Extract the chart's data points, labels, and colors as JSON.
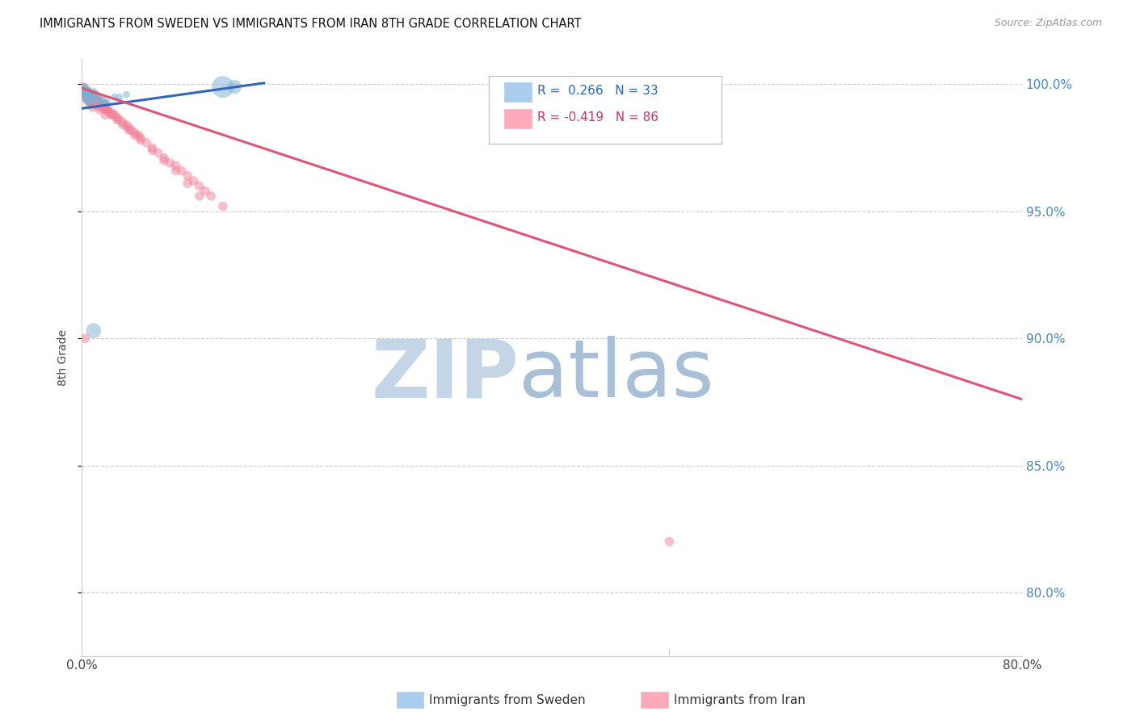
{
  "title": "IMMIGRANTS FROM SWEDEN VS IMMIGRANTS FROM IRAN 8TH GRADE CORRELATION CHART",
  "source": "Source: ZipAtlas.com",
  "ylabel": "8th Grade",
  "ytick_labels": [
    "100.0%",
    "95.0%",
    "90.0%",
    "85.0%",
    "80.0%"
  ],
  "ytick_values": [
    1.0,
    0.95,
    0.9,
    0.85,
    0.8
  ],
  "xlim": [
    0.0,
    0.8
  ],
  "ylim": [
    0.775,
    1.01
  ],
  "legend_r_sweden": "0.266",
  "legend_n_sweden": "33",
  "legend_r_iran": "-0.419",
  "legend_n_iran": "86",
  "sweden_color": "#7bafd4",
  "iran_color": "#f08098",
  "sweden_line_color": "#3366bb",
  "iran_line_color": "#e05575",
  "watermark_zip_color": "#c5d5e8",
  "watermark_atlas_color": "#a8bfd8",
  "sweden_scatter_x": [
    0.001,
    0.002,
    0.002,
    0.003,
    0.003,
    0.003,
    0.004,
    0.004,
    0.005,
    0.005,
    0.005,
    0.006,
    0.006,
    0.007,
    0.007,
    0.008,
    0.008,
    0.009,
    0.01,
    0.01,
    0.012,
    0.013,
    0.015,
    0.016,
    0.018,
    0.02,
    0.022,
    0.028,
    0.032,
    0.038,
    0.12,
    0.13,
    0.01
  ],
  "sweden_scatter_y": [
    0.998,
    0.999,
    0.997,
    0.998,
    0.996,
    0.995,
    0.997,
    0.994,
    0.998,
    0.996,
    0.993,
    0.997,
    0.995,
    0.996,
    0.994,
    0.996,
    0.993,
    0.995,
    0.997,
    0.994,
    0.996,
    0.995,
    0.994,
    0.993,
    0.994,
    0.993,
    0.993,
    0.995,
    0.995,
    0.996,
    0.999,
    0.999,
    0.903
  ],
  "sweden_scatter_size": [
    60,
    55,
    50,
    55,
    48,
    45,
    50,
    44,
    50,
    46,
    42,
    48,
    44,
    46,
    42,
    46,
    40,
    44,
    48,
    42,
    46,
    44,
    42,
    40,
    40,
    38,
    36,
    40,
    40,
    40,
    380,
    160,
    180
  ],
  "iran_scatter_x": [
    0.001,
    0.001,
    0.002,
    0.002,
    0.003,
    0.003,
    0.004,
    0.004,
    0.005,
    0.005,
    0.006,
    0.006,
    0.007,
    0.007,
    0.008,
    0.008,
    0.009,
    0.009,
    0.01,
    0.01,
    0.011,
    0.012,
    0.012,
    0.013,
    0.014,
    0.015,
    0.015,
    0.016,
    0.017,
    0.018,
    0.019,
    0.02,
    0.021,
    0.022,
    0.023,
    0.025,
    0.026,
    0.028,
    0.03,
    0.032,
    0.035,
    0.038,
    0.04,
    0.042,
    0.045,
    0.048,
    0.05,
    0.055,
    0.06,
    0.065,
    0.07,
    0.075,
    0.08,
    0.085,
    0.09,
    0.095,
    0.1,
    0.105,
    0.11,
    0.12,
    0.005,
    0.008,
    0.01,
    0.012,
    0.015,
    0.018,
    0.02,
    0.025,
    0.03,
    0.035,
    0.04,
    0.045,
    0.05,
    0.06,
    0.07,
    0.08,
    0.09,
    0.1,
    0.003,
    0.006,
    0.008,
    0.01,
    0.015,
    0.02,
    0.5,
    0.003
  ],
  "iran_scatter_y": [
    0.999,
    0.997,
    0.998,
    0.996,
    0.997,
    0.995,
    0.997,
    0.994,
    0.997,
    0.995,
    0.996,
    0.994,
    0.996,
    0.993,
    0.995,
    0.992,
    0.995,
    0.991,
    0.996,
    0.993,
    0.994,
    0.995,
    0.992,
    0.993,
    0.993,
    0.994,
    0.991,
    0.992,
    0.992,
    0.991,
    0.992,
    0.991,
    0.99,
    0.99,
    0.989,
    0.989,
    0.988,
    0.988,
    0.987,
    0.986,
    0.985,
    0.984,
    0.983,
    0.982,
    0.981,
    0.98,
    0.979,
    0.977,
    0.975,
    0.973,
    0.971,
    0.969,
    0.968,
    0.966,
    0.964,
    0.962,
    0.96,
    0.958,
    0.956,
    0.952,
    0.997,
    0.996,
    0.995,
    0.994,
    0.993,
    0.992,
    0.99,
    0.988,
    0.986,
    0.984,
    0.982,
    0.98,
    0.978,
    0.974,
    0.97,
    0.966,
    0.961,
    0.956,
    0.996,
    0.994,
    0.993,
    0.992,
    0.99,
    0.988,
    0.82,
    0.9
  ],
  "sweden_line_x": [
    0.0,
    0.155
  ],
  "sweden_line_y": [
    0.9905,
    1.0005
  ],
  "iran_line_x": [
    0.0,
    0.8
  ],
  "iran_line_y": [
    0.9985,
    0.876
  ]
}
